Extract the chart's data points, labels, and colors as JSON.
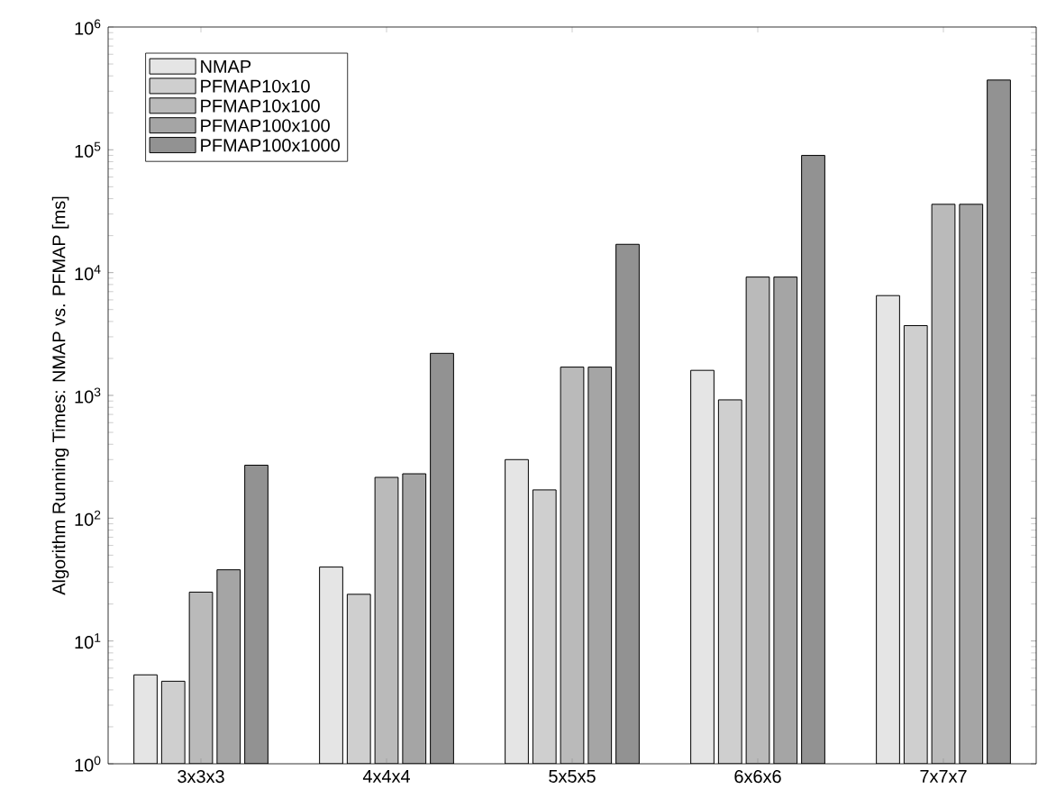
{
  "chart_data": {
    "type": "bar",
    "ylabel": "Algorithm Running Times: NMAP vs. PFMAP [ms]",
    "log": "y",
    "legend": "top left",
    "grid": false,
    "categories": [
      "3x3x3",
      "4x4x4",
      "5x5x5",
      "6x6x6",
      "7x7x7"
    ],
    "ylim": [
      1,
      1000000
    ],
    "yticks": [
      {
        "value": 1,
        "label": "10$^{0}$"
      },
      {
        "value": 10,
        "label": "10$^{1}$"
      },
      {
        "value": 100,
        "label": "10$^{2}$"
      },
      {
        "value": 1000,
        "label": "10$^{3}$"
      },
      {
        "value": 10000,
        "label": "10$^{4}$"
      },
      {
        "value": 100000,
        "label": "10$^{5}$"
      },
      {
        "value": 1000000,
        "label": "10$^{6}$"
      }
    ],
    "series": [
      {
        "name": "NMAP",
        "color": "#e5e5e5",
        "values": [
          5.3,
          40,
          300,
          1600,
          6500
        ]
      },
      {
        "name": "PFMAP10x10",
        "color": "#cfcfcf",
        "values": [
          4.7,
          24,
          170,
          920,
          3700
        ]
      },
      {
        "name": "PFMAP10x100",
        "color": "#bababa",
        "values": [
          25,
          215,
          1700,
          9200,
          36000
        ]
      },
      {
        "name": "PFMAP100x100",
        "color": "#a5a5a5",
        "values": [
          38,
          230,
          1700,
          9200,
          36000
        ]
      },
      {
        "name": "PFMAP100x1000",
        "color": "#929292",
        "values": [
          270,
          2200,
          17000,
          90000,
          370000
        ]
      }
    ]
  }
}
